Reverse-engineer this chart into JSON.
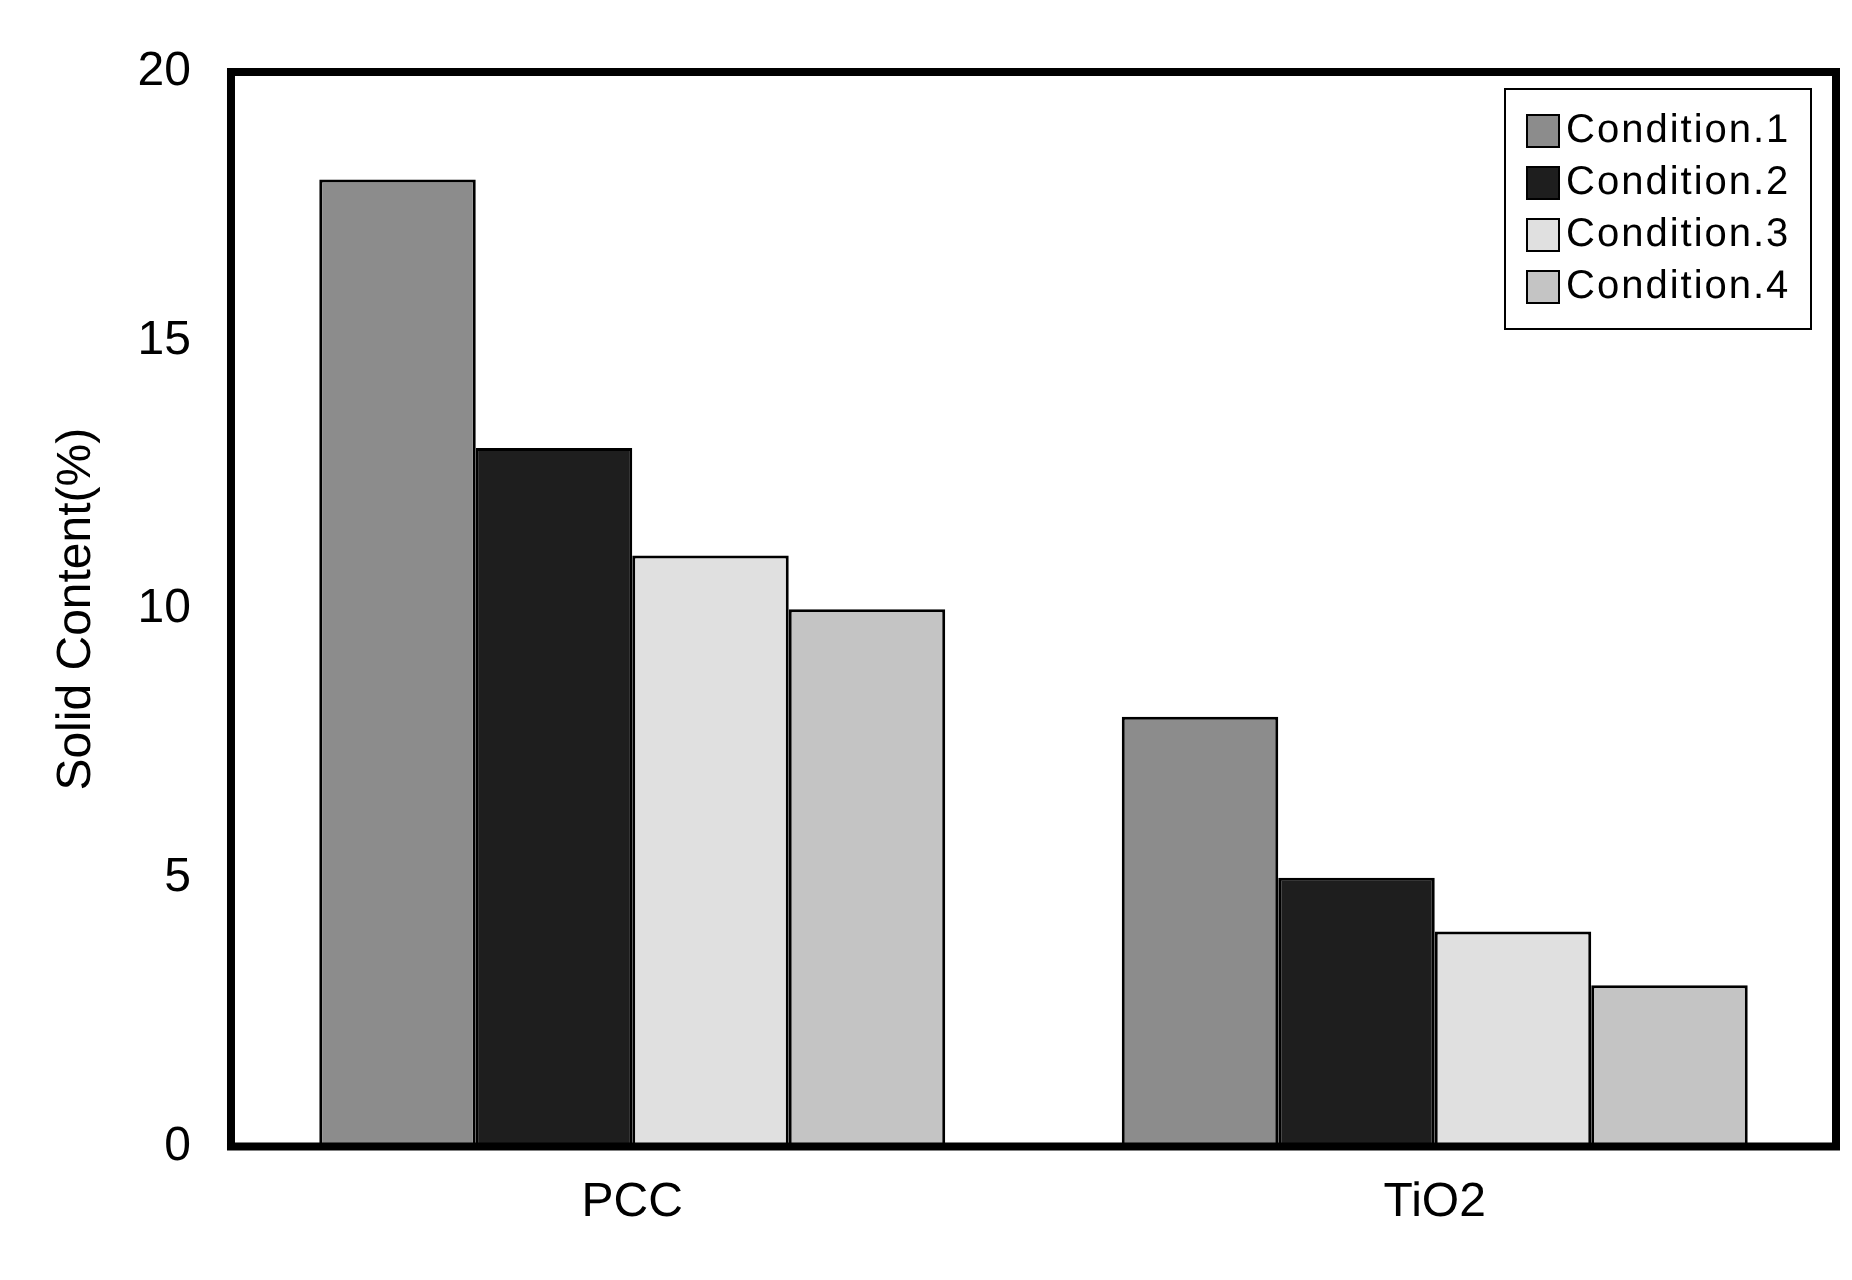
{
  "chart_data": {
    "type": "bar",
    "ylabel": "Solid Content(%)",
    "categories": [
      "PCC",
      "TiO2"
    ],
    "series": [
      {
        "name": "Condition.1",
        "color": "#8c8c8c",
        "values": [
          18,
          8
        ]
      },
      {
        "name": "Condition.2",
        "color": "#1e1e1e",
        "values": [
          13,
          5
        ]
      },
      {
        "name": "Condition.3",
        "color": "#e0e0e0",
        "values": [
          11,
          4
        ]
      },
      {
        "name": "Condition.4",
        "color": "#c4c4c4",
        "values": [
          10,
          3
        ]
      }
    ],
    "ylim": [
      0,
      20
    ],
    "yticks": [
      0,
      5,
      10,
      15,
      20
    ],
    "grid": false,
    "legend": "top right"
  }
}
